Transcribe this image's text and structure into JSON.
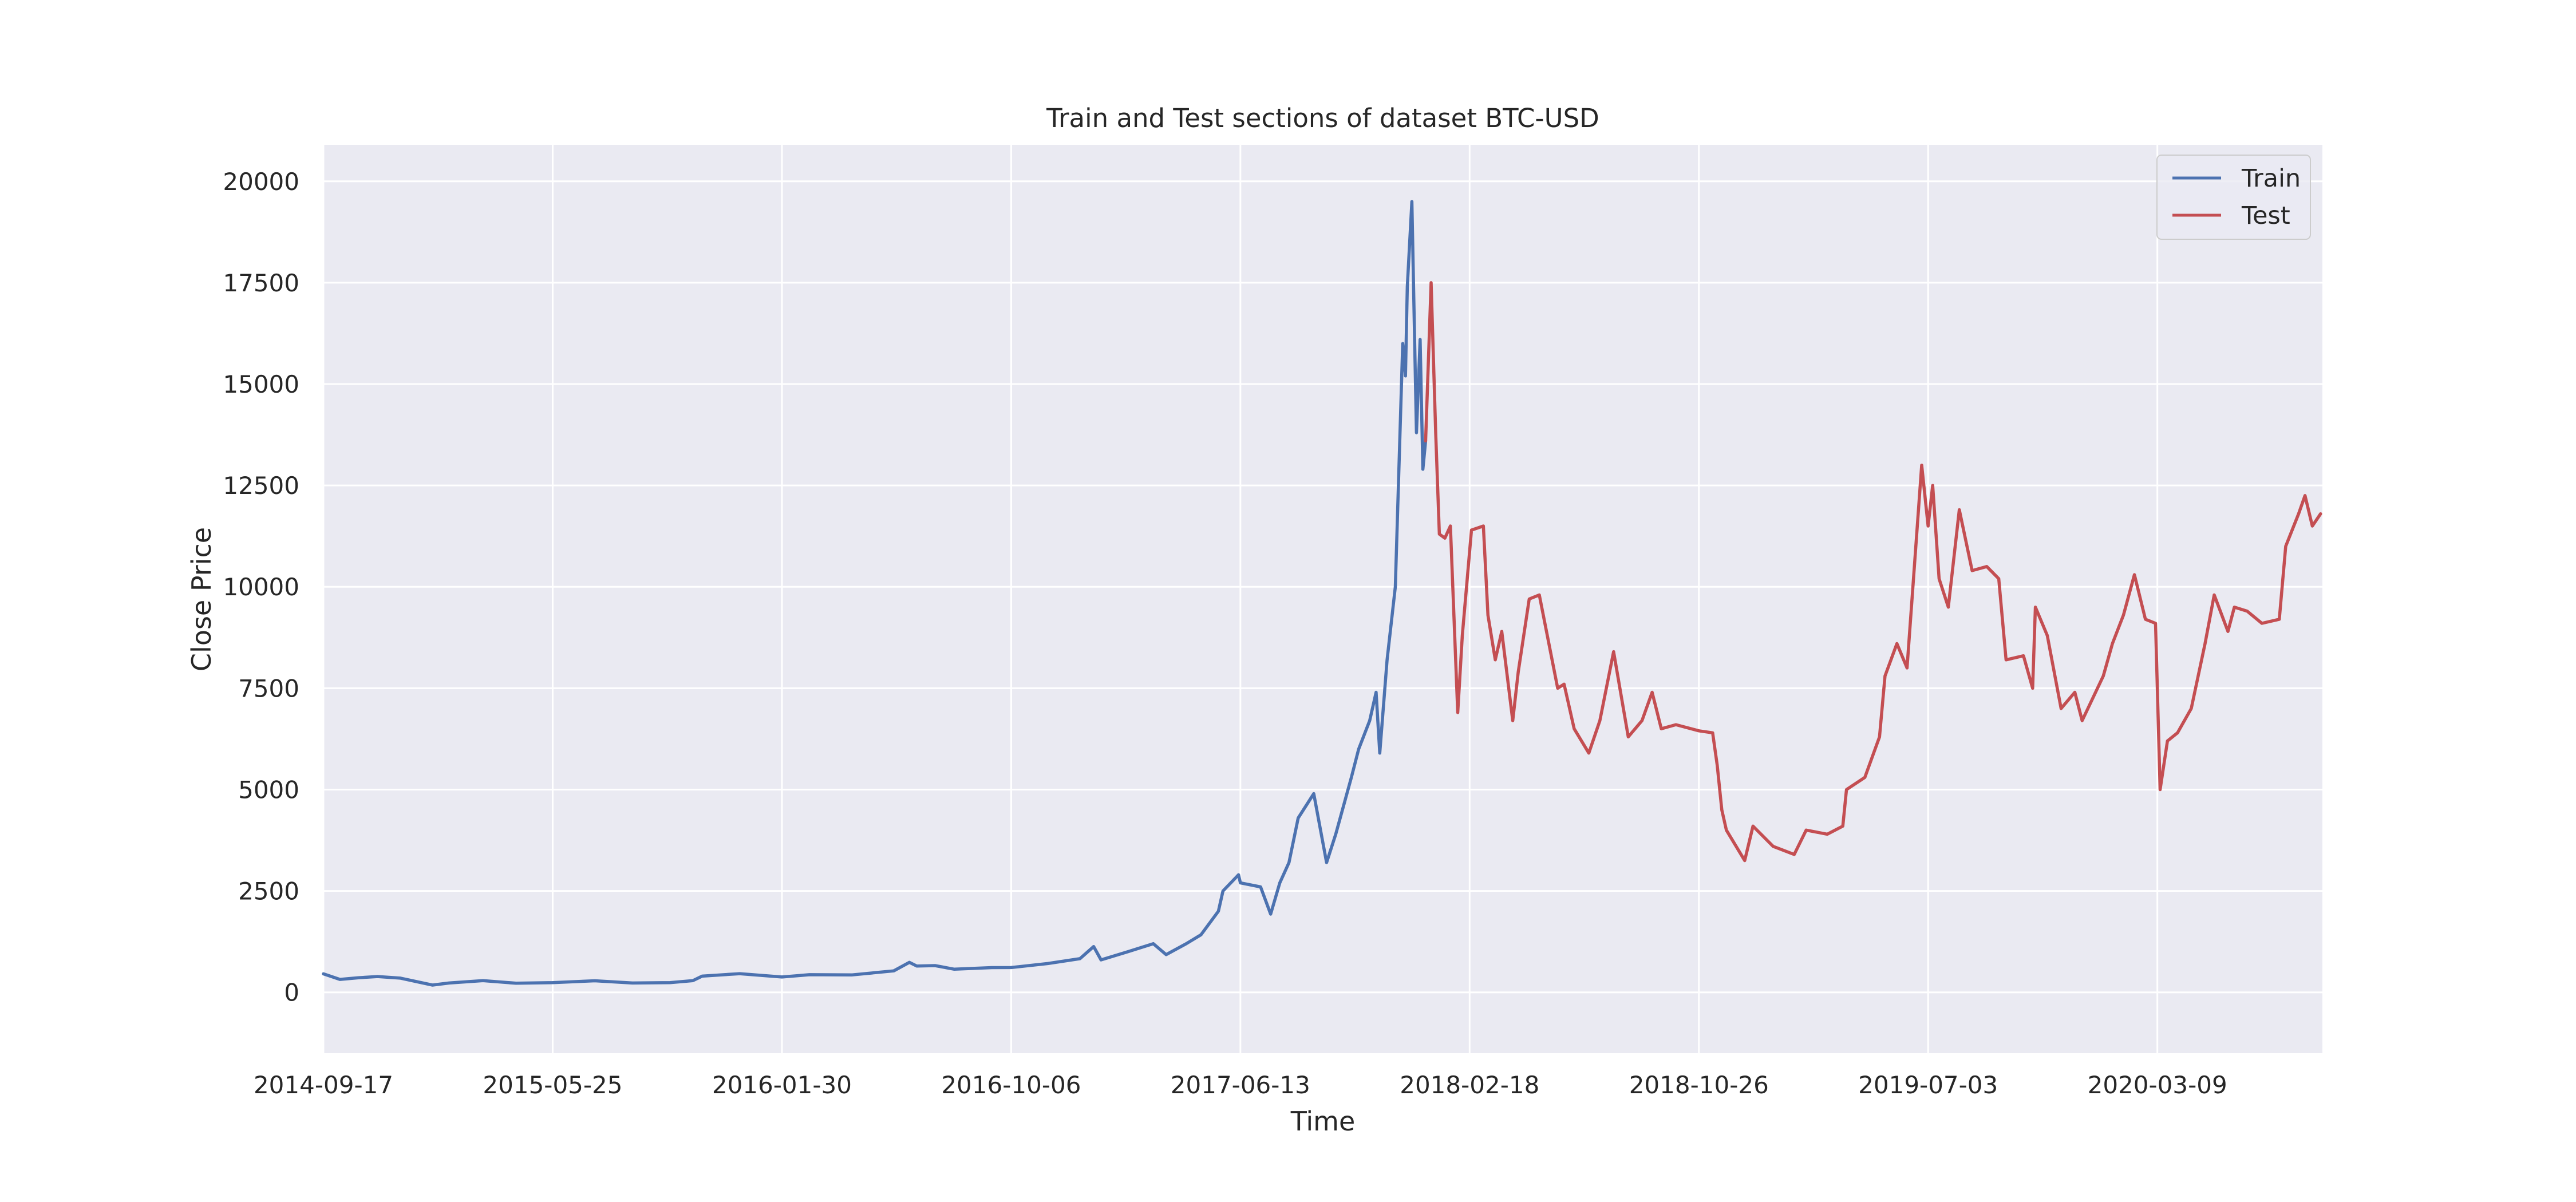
{
  "chart_data": {
    "type": "line",
    "title": "Train and Test sections of dataset BTC-USD",
    "xlabel": "Time",
    "ylabel": "Close Price",
    "x_type": "date",
    "xlim": [
      "2014-09-17",
      "2020-09-05"
    ],
    "ylim": [
      -1500,
      20900
    ],
    "x_ticks": [
      "2014-09-17",
      "2015-05-25",
      "2016-01-30",
      "2016-10-06",
      "2017-06-13",
      "2018-02-18",
      "2018-10-26",
      "2019-07-03",
      "2020-03-09"
    ],
    "y_ticks": [
      0,
      2500,
      5000,
      7500,
      10000,
      12500,
      15000,
      17500,
      20000
    ],
    "grid": true,
    "legend_position": "top-right",
    "background_color": "#EAEAF2",
    "grid_color": "#ffffff",
    "series": [
      {
        "name": "Train",
        "color": "#4C72B0",
        "points": [
          [
            "2014-09-17",
            457
          ],
          [
            "2014-10-05",
            320
          ],
          [
            "2014-10-25",
            360
          ],
          [
            "2014-11-15",
            390
          ],
          [
            "2014-12-10",
            350
          ],
          [
            "2015-01-14",
            180
          ],
          [
            "2015-02-01",
            230
          ],
          [
            "2015-03-10",
            290
          ],
          [
            "2015-04-15",
            225
          ],
          [
            "2015-05-25",
            240
          ],
          [
            "2015-07-10",
            285
          ],
          [
            "2015-08-20",
            230
          ],
          [
            "2015-09-30",
            240
          ],
          [
            "2015-10-25",
            290
          ],
          [
            "2015-11-04",
            400
          ],
          [
            "2015-12-15",
            460
          ],
          [
            "2016-01-30",
            378
          ],
          [
            "2016-02-29",
            435
          ],
          [
            "2016-04-15",
            430
          ],
          [
            "2016-05-31",
            530
          ],
          [
            "2016-06-17",
            740
          ],
          [
            "2016-06-25",
            650
          ],
          [
            "2016-07-15",
            660
          ],
          [
            "2016-08-05",
            570
          ],
          [
            "2016-09-15",
            610
          ],
          [
            "2016-10-06",
            612
          ],
          [
            "2016-11-15",
            710
          ],
          [
            "2016-12-20",
            830
          ],
          [
            "2017-01-04",
            1130
          ],
          [
            "2017-01-12",
            800
          ],
          [
            "2017-02-10",
            1000
          ],
          [
            "2017-03-10",
            1200
          ],
          [
            "2017-03-24",
            930
          ],
          [
            "2017-04-15",
            1200
          ],
          [
            "2017-05-01",
            1420
          ],
          [
            "2017-05-20",
            2000
          ],
          [
            "2017-05-25",
            2500
          ],
          [
            "2017-06-11",
            2900
          ],
          [
            "2017-06-13",
            2700
          ],
          [
            "2017-07-05",
            2600
          ],
          [
            "2017-07-16",
            1930
          ],
          [
            "2017-07-26",
            2700
          ],
          [
            "2017-08-05",
            3200
          ],
          [
            "2017-08-15",
            4300
          ],
          [
            "2017-09-01",
            4900
          ],
          [
            "2017-09-15",
            3200
          ],
          [
            "2017-09-25",
            3900
          ],
          [
            "2017-10-12",
            5300
          ],
          [
            "2017-10-20",
            6000
          ],
          [
            "2017-11-01",
            6700
          ],
          [
            "2017-11-08",
            7400
          ],
          [
            "2017-11-12",
            5900
          ],
          [
            "2017-11-20",
            8200
          ],
          [
            "2017-11-29",
            10000
          ],
          [
            "2017-12-07",
            16000
          ],
          [
            "2017-12-10",
            15200
          ],
          [
            "2017-12-12",
            17400
          ],
          [
            "2017-12-17",
            19500
          ],
          [
            "2017-12-22",
            13800
          ],
          [
            "2017-12-26",
            16100
          ],
          [
            "2017-12-29",
            12900
          ],
          [
            "2018-01-01",
            13600
          ]
        ]
      },
      {
        "name": "Test",
        "color": "#C44E52",
        "points": [
          [
            "2018-01-01",
            13600
          ],
          [
            "2018-01-07",
            17500
          ],
          [
            "2018-01-12",
            13800
          ],
          [
            "2018-01-16",
            11300
          ],
          [
            "2018-01-22",
            11200
          ],
          [
            "2018-01-28",
            11500
          ],
          [
            "2018-02-05",
            6900
          ],
          [
            "2018-02-10",
            8800
          ],
          [
            "2018-02-20",
            11400
          ],
          [
            "2018-03-05",
            11500
          ],
          [
            "2018-03-10",
            9300
          ],
          [
            "2018-03-18",
            8200
          ],
          [
            "2018-03-25",
            8900
          ],
          [
            "2018-04-06",
            6700
          ],
          [
            "2018-04-12",
            7900
          ],
          [
            "2018-04-24",
            9700
          ],
          [
            "2018-05-05",
            9800
          ],
          [
            "2018-05-25",
            7500
          ],
          [
            "2018-06-01",
            7600
          ],
          [
            "2018-06-12",
            6500
          ],
          [
            "2018-06-28",
            5900
          ],
          [
            "2018-07-10",
            6700
          ],
          [
            "2018-07-25",
            8400
          ],
          [
            "2018-08-10",
            6300
          ],
          [
            "2018-08-25",
            6700
          ],
          [
            "2018-09-05",
            7400
          ],
          [
            "2018-09-15",
            6500
          ],
          [
            "2018-10-01",
            6600
          ],
          [
            "2018-10-26",
            6450
          ],
          [
            "2018-11-10",
            6400
          ],
          [
            "2018-11-15",
            5600
          ],
          [
            "2018-11-20",
            4500
          ],
          [
            "2018-11-25",
            4000
          ],
          [
            "2018-12-15",
            3250
          ],
          [
            "2018-12-24",
            4100
          ],
          [
            "2019-01-15",
            3600
          ],
          [
            "2019-02-07",
            3400
          ],
          [
            "2019-02-20",
            4000
          ],
          [
            "2019-03-15",
            3900
          ],
          [
            "2019-04-01",
            4100
          ],
          [
            "2019-04-05",
            5000
          ],
          [
            "2019-04-25",
            5300
          ],
          [
            "2019-05-11",
            6300
          ],
          [
            "2019-05-17",
            7800
          ],
          [
            "2019-05-30",
            8600
          ],
          [
            "2019-06-10",
            8000
          ],
          [
            "2019-06-26",
            13000
          ],
          [
            "2019-07-03",
            11500
          ],
          [
            "2019-07-08",
            12500
          ],
          [
            "2019-07-15",
            10200
          ],
          [
            "2019-07-25",
            9500
          ],
          [
            "2019-08-06",
            11900
          ],
          [
            "2019-08-20",
            10400
          ],
          [
            "2019-09-05",
            10500
          ],
          [
            "2019-09-18",
            10200
          ],
          [
            "2019-09-26",
            8200
          ],
          [
            "2019-10-15",
            8300
          ],
          [
            "2019-10-25",
            7500
          ],
          [
            "2019-10-28",
            9500
          ],
          [
            "2019-11-10",
            8800
          ],
          [
            "2019-11-25",
            7000
          ],
          [
            "2019-12-10",
            7400
          ],
          [
            "2019-12-18",
            6700
          ],
          [
            "2020-01-10",
            7800
          ],
          [
            "2020-01-20",
            8600
          ],
          [
            "2020-02-01",
            9300
          ],
          [
            "2020-02-13",
            10300
          ],
          [
            "2020-02-25",
            9200
          ],
          [
            "2020-03-07",
            9100
          ],
          [
            "2020-03-12",
            5000
          ],
          [
            "2020-03-20",
            6200
          ],
          [
            "2020-03-31",
            6400
          ],
          [
            "2020-04-15",
            7000
          ],
          [
            "2020-04-30",
            8600
          ],
          [
            "2020-05-10",
            9800
          ],
          [
            "2020-05-25",
            8900
          ],
          [
            "2020-06-01",
            9500
          ],
          [
            "2020-06-15",
            9400
          ],
          [
            "2020-07-01",
            9100
          ],
          [
            "2020-07-20",
            9200
          ],
          [
            "2020-07-27",
            11000
          ],
          [
            "2020-08-10",
            11800
          ],
          [
            "2020-08-17",
            12250
          ],
          [
            "2020-08-25",
            11500
          ],
          [
            "2020-09-03",
            11800
          ]
        ]
      }
    ]
  }
}
